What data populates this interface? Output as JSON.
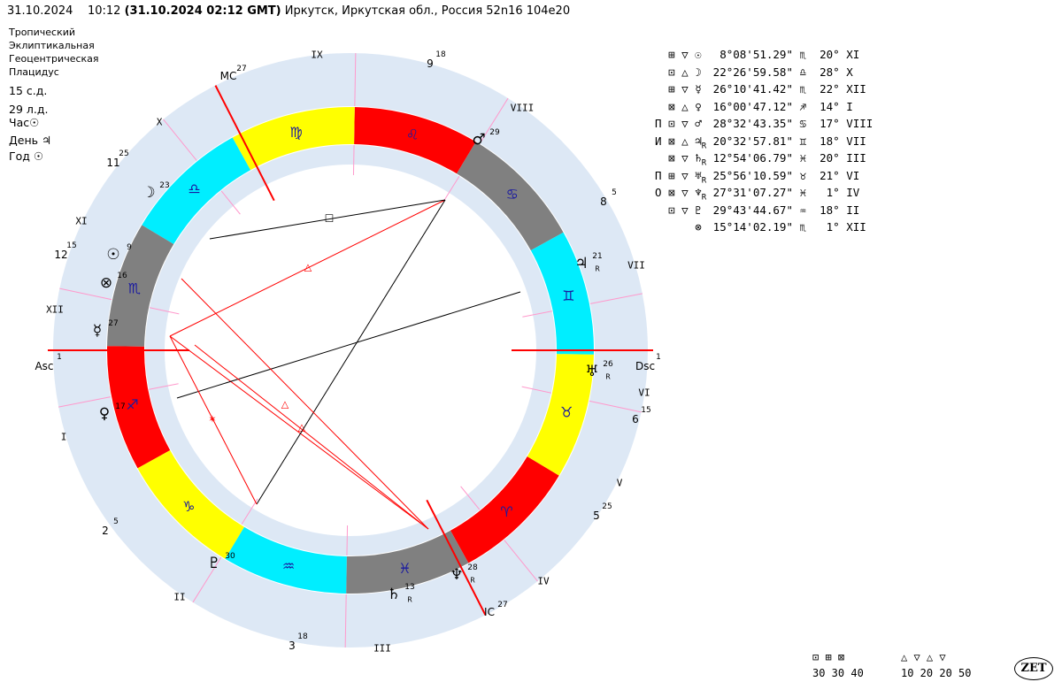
{
  "header": {
    "date": "31.10.2024",
    "time": "10:12",
    "utc": "(31.10.2024  02:12 GMT)",
    "place": "Иркутск, Иркутская обл., Россия 52n16 104e20"
  },
  "settings": [
    "Тропический",
    "Эклиптикальная",
    "Геоцентрическая",
    "Плацидус"
  ],
  "day_info": [
    "15 с.д.",
    "29 л.д."
  ],
  "rulers": [
    {
      "label": "Час",
      "glyph": "☉"
    },
    {
      "label": "День",
      "glyph": "♃"
    },
    {
      "label": "Год",
      "glyph": "☉"
    }
  ],
  "colors": {
    "fire": "#ff0000",
    "earth": "#ffff00",
    "air": "#00eeff",
    "water": "#808080",
    "outer_ring": "#dde8f5",
    "inner_ring": "#dde8f5",
    "axis": "#ff0000",
    "cusp": "#ff99cc",
    "aspect_red": "#ff0000",
    "aspect_black": "#000000"
  },
  "angles": [
    {
      "label": "Asc",
      "deg": "1"
    },
    {
      "label": "Dsc",
      "deg": "1"
    },
    {
      "label": "MC",
      "deg": "27"
    },
    {
      "label": "IC",
      "deg": "27"
    }
  ],
  "houses": [
    "I",
    "II",
    "III",
    "IV",
    "V",
    "VI",
    "VII",
    "VIII",
    "IX",
    "X",
    "XI",
    "XII"
  ],
  "cusp_labels": [
    {
      "num": "2",
      "deg": "5"
    },
    {
      "num": "3",
      "deg": "18"
    },
    {
      "num": "5",
      "deg": "25"
    },
    {
      "num": "6",
      "deg": "15"
    },
    {
      "num": "8",
      "deg": "5"
    },
    {
      "num": "9",
      "deg": "18"
    },
    {
      "num": "11",
      "deg": "25"
    },
    {
      "num": "12",
      "deg": "15"
    }
  ],
  "signs": [
    "♈",
    "♉",
    "♊",
    "♋",
    "♌",
    "♍",
    "♎",
    "♏",
    "♐",
    "♑",
    "♒",
    "♓"
  ],
  "chart_planets": [
    {
      "glyph": "☉",
      "deg": "9",
      "retro": ""
    },
    {
      "glyph": "☽",
      "deg": "23",
      "retro": ""
    },
    {
      "glyph": "☿",
      "deg": "27",
      "retro": ""
    },
    {
      "glyph": "♀",
      "deg": "17",
      "retro": ""
    },
    {
      "glyph": "♂",
      "deg": "29",
      "retro": ""
    },
    {
      "glyph": "♃",
      "deg": "21",
      "retro": "R"
    },
    {
      "glyph": "♄",
      "deg": "13",
      "retro": "R"
    },
    {
      "glyph": "♅",
      "deg": "26",
      "retro": "R"
    },
    {
      "glyph": "♆",
      "deg": "28",
      "retro": "R"
    },
    {
      "glyph": "♇",
      "deg": "30",
      "retro": ""
    },
    {
      "glyph": "⊗",
      "deg": "16",
      "retro": ""
    }
  ],
  "table": [
    {
      "pre": " ",
      "a": "⊞",
      "b": "▽",
      "p": "☉",
      "r": " ",
      "pos": " 8°08'51.29\"",
      "s": "♏",
      "hd": "20°",
      "h": "XI"
    },
    {
      "pre": " ",
      "a": "⊡",
      "b": "△",
      "p": "☽",
      "r": " ",
      "pos": "22°26'59.58\"",
      "s": "♎",
      "hd": "28°",
      "h": "X"
    },
    {
      "pre": " ",
      "a": "⊞",
      "b": "▽",
      "p": "☿",
      "r": " ",
      "pos": "26°10'41.42\"",
      "s": "♏",
      "hd": "22°",
      "h": "XII"
    },
    {
      "pre": " ",
      "a": "⊠",
      "b": "△",
      "p": "♀",
      "r": " ",
      "pos": "16°00'47.12\"",
      "s": "♐",
      "hd": "14°",
      "h": "I"
    },
    {
      "pre": "П",
      "a": "⊡",
      "b": "▽",
      "p": "♂",
      "r": " ",
      "pos": "28°32'43.35\"",
      "s": "♋",
      "hd": "17°",
      "h": "VIII"
    },
    {
      "pre": "И",
      "a": "⊠",
      "b": "△",
      "p": "♃",
      "r": "R",
      "pos": "20°32'57.81\"",
      "s": "♊",
      "hd": "18°",
      "h": "VII"
    },
    {
      "pre": " ",
      "a": "⊠",
      "b": "▽",
      "p": "♄",
      "r": "R",
      "pos": "12°54'06.79\"",
      "s": "♓",
      "hd": "20°",
      "h": "III"
    },
    {
      "pre": "П",
      "a": "⊞",
      "b": "▽",
      "p": "♅",
      "r": "R",
      "pos": "25°56'10.59\"",
      "s": "♉",
      "hd": "21°",
      "h": "VI"
    },
    {
      "pre": "О",
      "a": "⊠",
      "b": "▽",
      "p": "♆",
      "r": "R",
      "pos": "27°31'07.27\"",
      "s": "♓",
      "hd": " 1°",
      "h": "IV"
    },
    {
      "pre": " ",
      "a": "⊡",
      "b": "▽",
      "p": "♇",
      "r": " ",
      "pos": "29°43'44.67\"",
      "s": "♒",
      "hd": "18°",
      "h": "II"
    },
    {
      "pre": " ",
      "a": " ",
      "b": " ",
      "p": "⊗",
      "r": " ",
      "pos": "15°14'02.19\"",
      "s": "♏",
      "hd": " 1°",
      "h": "XII"
    }
  ],
  "legend": {
    "quad_glyphs": "⊡ ⊞ ⊠",
    "quad_values": "30 30 40",
    "tri_glyphs": "△ ▽ △ ▽",
    "tri_values": "10 20 20 50"
  },
  "logo": "ZET"
}
